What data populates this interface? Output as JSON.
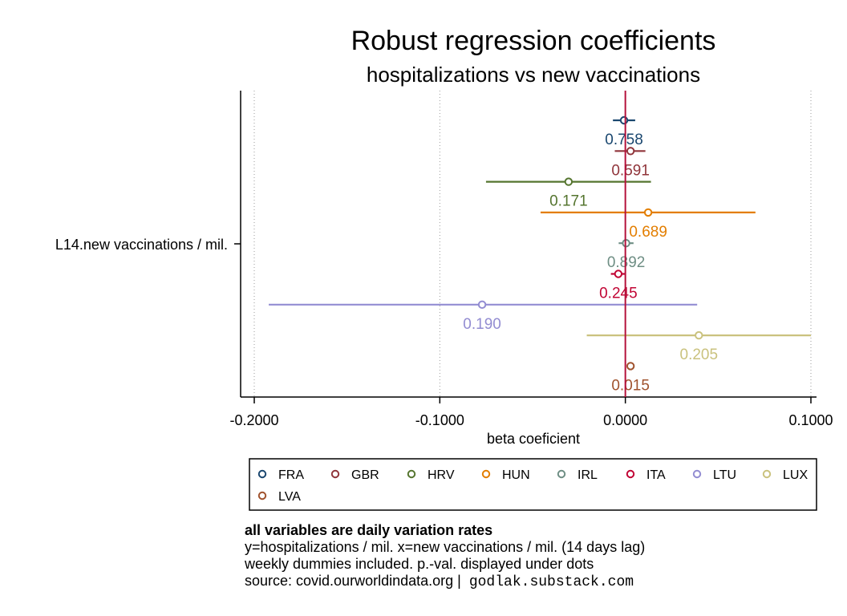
{
  "chart_data": {
    "type": "scatter",
    "title": "Robust regression coefficients",
    "subtitle": "hospitalizations vs new vaccinations",
    "xlabel": "beta coeficient",
    "ylabel": "L14.new vaccinations / mil.",
    "xlim": [
      -0.2,
      0.1
    ],
    "xticks": [
      "-0.2000",
      "-0.1000",
      "0.0000",
      "0.1000"
    ],
    "xtick_values": [
      -0.2,
      -0.1,
      0.0,
      0.1
    ],
    "grid": "vertical dotted",
    "zero_line_color": "#b5123c",
    "legend_position": "bottom",
    "series": [
      {
        "name": "FRA",
        "color": "#1a476f",
        "coef": -0.0007,
        "ci": [
          -0.0067,
          0.0053
        ],
        "pval": "0.758"
      },
      {
        "name": "GBR",
        "color": "#90353b",
        "coef": 0.0028,
        "ci": [
          -0.0057,
          0.0108
        ],
        "pval": "0.591"
      },
      {
        "name": "HRV",
        "color": "#55752f",
        "coef": -0.0306,
        "ci": [
          -0.0751,
          0.0138
        ],
        "pval": "0.171"
      },
      {
        "name": "HUN",
        "color": "#e37e00",
        "coef": 0.0123,
        "ci": [
          -0.0457,
          0.0701
        ],
        "pval": "0.689"
      },
      {
        "name": "IRL",
        "color": "#6e8e84",
        "coef": 0.0004,
        "ci": [
          -0.0036,
          0.0044
        ],
        "pval": "0.892"
      },
      {
        "name": "ITA",
        "color": "#c10534",
        "coef": -0.0038,
        "ci": [
          -0.0078,
          0.0002
        ],
        "pval": "0.245"
      },
      {
        "name": "LTU",
        "color": "#938dd2",
        "coef": -0.0772,
        "ci": [
          -0.1922,
          0.0387
        ],
        "pval": "0.190"
      },
      {
        "name": "LUX",
        "color": "#cac27e",
        "coef": 0.0396,
        "ci": [
          -0.0208,
          0.1
        ],
        "pval": "0.205"
      },
      {
        "name": "LVA",
        "color": "#a0522d",
        "coef": 0.0028,
        "ci": [
          0.0028,
          0.0028
        ],
        "pval": "0.015"
      }
    ]
  },
  "notes": {
    "heading": "all variables are daily variation rates",
    "line1": "y=hospitalizations / mil. x=new vaccinations / mil. (14 days lag)",
    "line2": "weekly dummies included. p.-val. displayed under dots",
    "line3": "source: covid.ourworldindata.org |",
    "credit": "godlak.substack.com"
  }
}
